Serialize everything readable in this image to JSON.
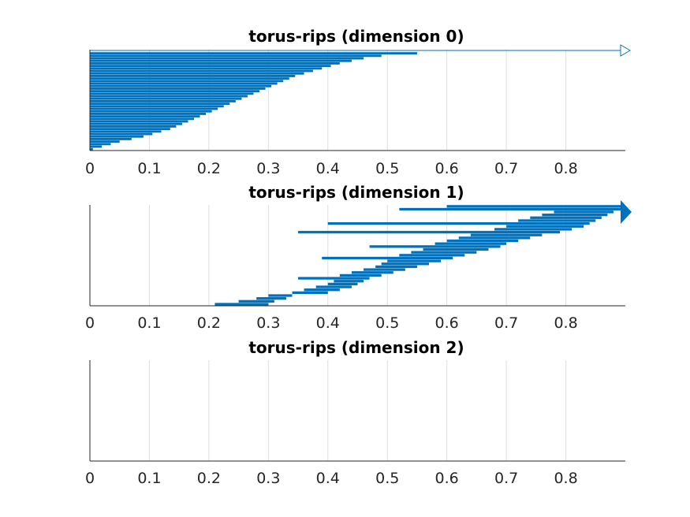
{
  "chart_data": [
    {
      "type": "barcode",
      "title": "torus-rips (dimension 0)",
      "xlim": [
        0,
        0.9
      ],
      "xticks": [
        0,
        0.1,
        0.2,
        0.3,
        0.4,
        0.5,
        0.6,
        0.7,
        0.8
      ],
      "xtick_labels": [
        "0",
        "0.1",
        "0.2",
        "0.3",
        "0.4",
        "0.5",
        "0.6",
        "0.7",
        "0.8"
      ],
      "grid": "x",
      "color": "#0072bd",
      "summary": "dense staircase of intervals all born at 0; deaths rise from about 0 to 0.55 (sigmoid-shaped envelope); one infinite interval (hollow arrow)",
      "intervals": [
        [
          0,
          0.005
        ],
        [
          0,
          0.02
        ],
        [
          0,
          0.035
        ],
        [
          0,
          0.05
        ],
        [
          0,
          0.07
        ],
        [
          0,
          0.09
        ],
        [
          0,
          0.105
        ],
        [
          0,
          0.12
        ],
        [
          0,
          0.135
        ],
        [
          0,
          0.145
        ],
        [
          0,
          0.155
        ],
        [
          0,
          0.165
        ],
        [
          0,
          0.175
        ],
        [
          0,
          0.185
        ],
        [
          0,
          0.195
        ],
        [
          0,
          0.205
        ],
        [
          0,
          0.215
        ],
        [
          0,
          0.225
        ],
        [
          0,
          0.235
        ],
        [
          0,
          0.245
        ],
        [
          0,
          0.255
        ],
        [
          0,
          0.265
        ],
        [
          0,
          0.275
        ],
        [
          0,
          0.285
        ],
        [
          0,
          0.295
        ],
        [
          0,
          0.305
        ],
        [
          0,
          0.315
        ],
        [
          0,
          0.325
        ],
        [
          0,
          0.335
        ],
        [
          0,
          0.345
        ],
        [
          0,
          0.36
        ],
        [
          0,
          0.375
        ],
        [
          0,
          0.39
        ],
        [
          0,
          0.405
        ],
        [
          0,
          0.42
        ],
        [
          0,
          0.44
        ],
        [
          0,
          0.46
        ],
        [
          0,
          0.49
        ],
        [
          0,
          0.55
        ]
      ],
      "infinite": [
        [
          0,
          "inf"
        ]
      ]
    },
    {
      "type": "barcode",
      "title": "torus-rips (dimension 1)",
      "xlim": [
        0,
        0.9
      ],
      "xticks": [
        0,
        0.1,
        0.2,
        0.3,
        0.4,
        0.5,
        0.6,
        0.7,
        0.8
      ],
      "xtick_labels": [
        "0",
        "0.1",
        "0.2",
        "0.3",
        "0.4",
        "0.5",
        "0.6",
        "0.7",
        "0.8"
      ],
      "grid": "x",
      "color": "#0072bd",
      "summary": "intervals born roughly between 0.2 and 0.85, most dying shortly after birth; a few long bars; two infinite intervals (filled arrow)",
      "intervals": [
        [
          0.21,
          0.3
        ],
        [
          0.25,
          0.31
        ],
        [
          0.28,
          0.33
        ],
        [
          0.3,
          0.34
        ],
        [
          0.34,
          0.4
        ],
        [
          0.36,
          0.42
        ],
        [
          0.38,
          0.44
        ],
        [
          0.4,
          0.45
        ],
        [
          0.41,
          0.46
        ],
        [
          0.35,
          0.47
        ],
        [
          0.42,
          0.49
        ],
        [
          0.44,
          0.51
        ],
        [
          0.46,
          0.53
        ],
        [
          0.48,
          0.55
        ],
        [
          0.49,
          0.57
        ],
        [
          0.5,
          0.59
        ],
        [
          0.39,
          0.61
        ],
        [
          0.52,
          0.63
        ],
        [
          0.54,
          0.65
        ],
        [
          0.56,
          0.67
        ],
        [
          0.47,
          0.69
        ],
        [
          0.58,
          0.7
        ],
        [
          0.6,
          0.72
        ],
        [
          0.62,
          0.74
        ],
        [
          0.64,
          0.76
        ],
        [
          0.35,
          0.79
        ],
        [
          0.68,
          0.81
        ],
        [
          0.7,
          0.83
        ],
        [
          0.4,
          0.84
        ],
        [
          0.72,
          0.85
        ],
        [
          0.74,
          0.86
        ],
        [
          0.76,
          0.87
        ],
        [
          0.78,
          0.88
        ]
      ],
      "infinite": [
        [
          0.52,
          "inf"
        ],
        [
          0.6,
          "inf"
        ]
      ]
    },
    {
      "type": "barcode",
      "title": "torus-rips (dimension 2)",
      "xlim": [
        0,
        0.9
      ],
      "xticks": [
        0,
        0.1,
        0.2,
        0.3,
        0.4,
        0.5,
        0.6,
        0.7,
        0.8
      ],
      "xtick_labels": [
        "0",
        "0.1",
        "0.2",
        "0.3",
        "0.4",
        "0.5",
        "0.6",
        "0.7",
        "0.8"
      ],
      "grid": "x",
      "color": "#0072bd",
      "intervals": [],
      "infinite": []
    }
  ]
}
